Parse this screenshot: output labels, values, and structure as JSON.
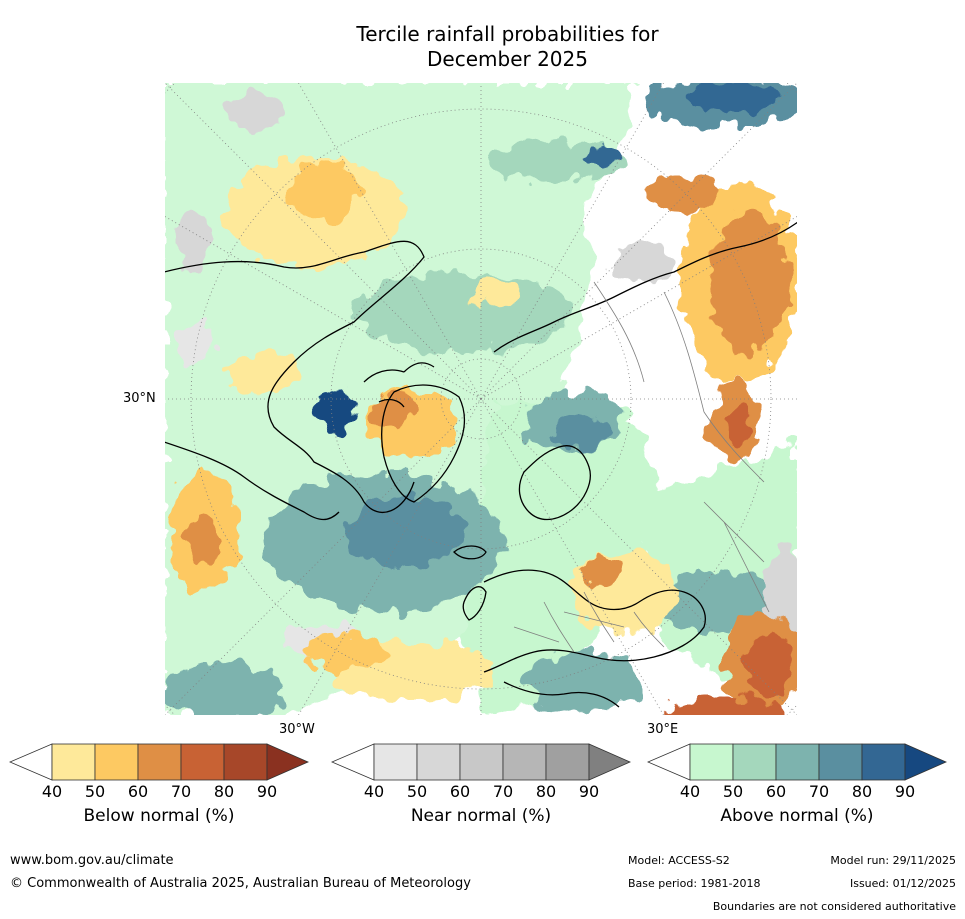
{
  "title": {
    "line1": "Tercile rainfall probabilities for",
    "line2": "December 2025"
  },
  "map": {
    "projection": "north-polar-stereographic",
    "lat_label": "30°N",
    "lon_labels": [
      "30°W",
      "30°E"
    ],
    "colors": {
      "below": [
        "#ffffff",
        "#fee99a",
        "#fdc962",
        "#df8f45",
        "#c86234",
        "#a74729",
        "#8a3120"
      ],
      "near": [
        "#ffffff",
        "#e6e6e6",
        "#d7d7d7",
        "#c8c8c8",
        "#b6b6b6",
        "#a0a0a0",
        "#808080"
      ],
      "above": [
        "#ffffff",
        "#c7f7cf",
        "#a4d7bc",
        "#7db3ae",
        "#5a8fa0",
        "#336793",
        "#164880"
      ]
    }
  },
  "colorbars": [
    {
      "id": "below",
      "label": "Below normal (%)",
      "ticks": [
        "40",
        "50",
        "60",
        "70",
        "80",
        "90"
      ]
    },
    {
      "id": "near",
      "label": "Near normal (%)",
      "ticks": [
        "40",
        "50",
        "60",
        "70",
        "80",
        "90"
      ]
    },
    {
      "id": "above",
      "label": "Above normal (%)",
      "ticks": [
        "40",
        "50",
        "60",
        "70",
        "80",
        "90"
      ]
    }
  ],
  "footer": {
    "url": "www.bom.gov.au/climate",
    "copyright": "© Commonwealth of Australia 2025, Australian Bureau of Meteorology",
    "model": "Model: ACCESS-S2",
    "model_run": "Model run: 29/11/2025",
    "base_period": "Base period: 1981-2018",
    "issued": "Issued: 01/12/2025",
    "disclaimer": "Boundaries are not considered authoritative"
  }
}
